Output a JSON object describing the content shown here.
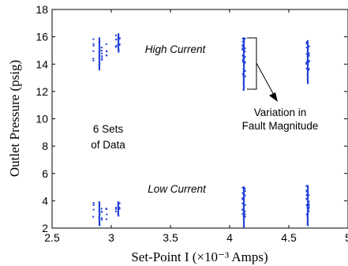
{
  "chart_data": {
    "type": "scatter",
    "xlabel": "Set-Point I (×10⁻³ Amps)",
    "ylabel": "Outlet Pressure (psig)",
    "xlim": [
      2.5,
      5
    ],
    "ylim": [
      2,
      18
    ],
    "xticks": [
      2.5,
      3,
      3.5,
      4,
      4.5,
      5
    ],
    "xtick_labels": [
      "2.5",
      "3",
      "3.5",
      "4",
      "4.5",
      "5"
    ],
    "yticks": [
      2,
      4,
      6,
      8,
      10,
      12,
      14,
      16,
      18
    ],
    "ytick_labels": [
      "2",
      "4",
      "6",
      "8",
      "10",
      "12",
      "14",
      "16",
      "18"
    ],
    "marker_color": "#1f3fd8",
    "clusters": [
      {
        "x": [
          2.9,
          2.92,
          2.85,
          2.96
        ],
        "y_range": [
          13.6,
          15.9
        ],
        "group": "high"
      },
      {
        "x": [
          3.06,
          3.04,
          3.07
        ],
        "y_range": [
          14.9,
          16.2
        ],
        "group": "high"
      },
      {
        "x": [
          4.12,
          4.11,
          4.13
        ],
        "y_range": [
          12.1,
          15.9
        ],
        "group": "high"
      },
      {
        "x": [
          4.66,
          4.65,
          4.67
        ],
        "y_range": [
          12.6,
          15.7
        ],
        "group": "high"
      },
      {
        "x": [
          2.9,
          2.92,
          2.85,
          2.96
        ],
        "y_range": [
          2.2,
          3.9
        ],
        "group": "low"
      },
      {
        "x": [
          3.06,
          3.04,
          3.07
        ],
        "y_range": [
          2.9,
          3.9
        ],
        "group": "low"
      },
      {
        "x": [
          4.12,
          4.11,
          4.13
        ],
        "y_range": [
          2.1,
          5.0
        ],
        "group": "low"
      },
      {
        "x": [
          4.66,
          4.65,
          4.67
        ],
        "y_range": [
          2.2,
          5.1
        ],
        "group": "low"
      }
    ],
    "annotations": {
      "high_current": "High Current",
      "low_current": "Low Current",
      "six_sets_line1": "6 Sets",
      "six_sets_line2": "of Data",
      "variation_line1": "Variation in",
      "variation_line2": "Fault Magnitude"
    },
    "grid": false
  }
}
